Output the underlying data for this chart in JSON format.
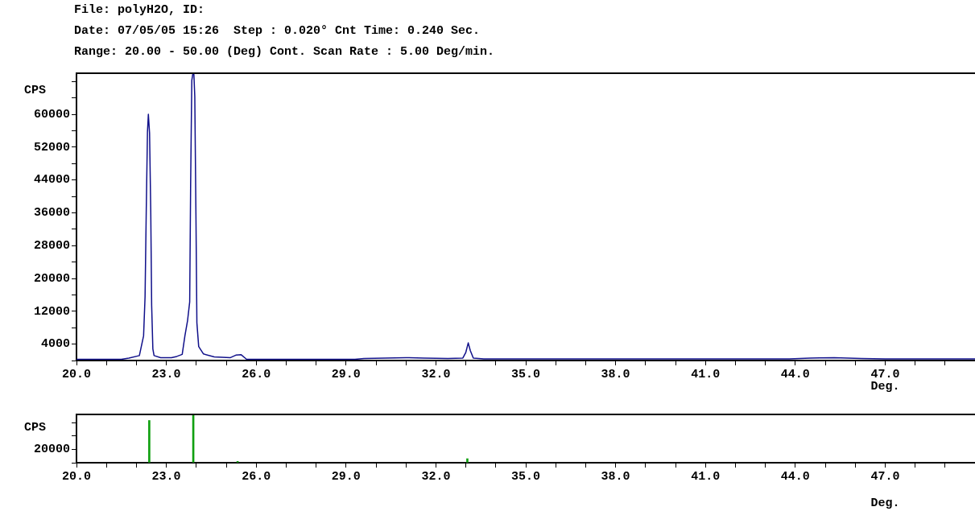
{
  "chart_data": [
    {
      "type": "line",
      "title": "File: polyH2O, ID:",
      "subtitle": "Date: 07/05/05 15:26  Step : 0.020° Cnt Time: 0.240 Sec.",
      "annotations": [
        "Range: 20.00 - 50.00 (Deg) Cont. Scan Rate : 5.00 Deg/min."
      ],
      "xlabel": "Deg.",
      "ylabel": "CPS",
      "marker": "none",
      "xlim": [
        20,
        50
      ],
      "ylim": [
        0,
        70000
      ],
      "xticks": [
        {
          "value": 20,
          "label": "20.0"
        },
        {
          "value": 21,
          "label": null
        },
        {
          "value": 22,
          "label": null
        },
        {
          "value": 23,
          "label": "23.0"
        },
        {
          "value": 24,
          "label": null
        },
        {
          "value": 25,
          "label": null
        },
        {
          "value": 26,
          "label": "26.0"
        },
        {
          "value": 27,
          "label": null
        },
        {
          "value": 28,
          "label": null
        },
        {
          "value": 29,
          "label": "29.0"
        },
        {
          "value": 30,
          "label": null
        },
        {
          "value": 31,
          "label": null
        },
        {
          "value": 32,
          "label": "32.0"
        },
        {
          "value": 33,
          "label": null
        },
        {
          "value": 34,
          "label": null
        },
        {
          "value": 35,
          "label": "35.0"
        },
        {
          "value": 36,
          "label": null
        },
        {
          "value": 37,
          "label": null
        },
        {
          "value": 38,
          "label": "38.0"
        },
        {
          "value": 39,
          "label": null
        },
        {
          "value": 40,
          "label": null
        },
        {
          "value": 41,
          "label": "41.0"
        },
        {
          "value": 42,
          "label": null
        },
        {
          "value": 43,
          "label": null
        },
        {
          "value": 44,
          "label": "44.0"
        },
        {
          "value": 45,
          "label": null
        },
        {
          "value": 46,
          "label": null
        },
        {
          "value": 47,
          "label": "47.0"
        },
        {
          "value": 48,
          "label": null
        },
        {
          "value": 49,
          "label": null
        }
      ],
      "yticks": [
        {
          "value": 0,
          "label": null
        },
        4000,
        {
          "value": 8000,
          "label": null
        },
        12000,
        {
          "value": 16000,
          "label": null
        },
        20000,
        {
          "value": 24000,
          "label": null
        },
        28000,
        {
          "value": 32000,
          "label": null
        },
        36000,
        {
          "value": 40000,
          "label": null
        },
        44000,
        {
          "value": 48000,
          "label": null
        },
        52000,
        {
          "value": 56000,
          "label": null
        },
        60000,
        {
          "value": 64000,
          "label": null
        },
        {
          "value": 68000,
          "label": null
        }
      ],
      "series": [
        {
          "color": "#10108a",
          "x": [
            20.0,
            21.5,
            21.75,
            22.1,
            22.24,
            22.29,
            22.33,
            22.37,
            22.4,
            22.44,
            22.48,
            22.51,
            22.55,
            22.59,
            22.81,
            23.17,
            23.35,
            23.53,
            23.62,
            23.71,
            23.78,
            23.81,
            23.85,
            23.88,
            23.92,
            23.95,
            23.99,
            24.02,
            24.08,
            24.24,
            24.6,
            25.14,
            25.32,
            25.5,
            25.68,
            27.0,
            29.3,
            29.6,
            30.3,
            31.0,
            31.6,
            32.4,
            32.9,
            33.0,
            33.08,
            33.15,
            33.25,
            33.6,
            36.0,
            40.0,
            43.8,
            44.5,
            45.3,
            46.2,
            47.0,
            50.0
          ],
          "values": [
            300,
            300,
            600,
            1200,
            6000,
            15600,
            36800,
            55700,
            60000,
            55400,
            36200,
            13400,
            2800,
            1200,
            700,
            700,
            1000,
            1500,
            6000,
            9800,
            14300,
            41900,
            68200,
            69700,
            69700,
            64300,
            34200,
            9200,
            3400,
            1600,
            900,
            700,
            1300,
            1400,
            300,
            300,
            300,
            500,
            600,
            700,
            600,
            500,
            600,
            2000,
            4300,
            2400,
            600,
            400,
            400,
            400,
            400,
            600,
            700,
            500,
            400,
            400
          ]
        }
      ]
    },
    {
      "type": "bar",
      "xlabel": "Deg.",
      "ylabel": "CPS",
      "xlim": [
        20,
        50
      ],
      "ylim": [
        0,
        72000
      ],
      "xticks": [
        {
          "value": 20,
          "label": "20.0"
        },
        {
          "value": 21,
          "label": null
        },
        {
          "value": 22,
          "label": null
        },
        {
          "value": 23,
          "label": "23.0"
        },
        {
          "value": 24,
          "label": null
        },
        {
          "value": 25,
          "label": null
        },
        {
          "value": 26,
          "label": "26.0"
        },
        {
          "value": 27,
          "label": null
        },
        {
          "value": 28,
          "label": null
        },
        {
          "value": 29,
          "label": "29.0"
        },
        {
          "value": 30,
          "label": null
        },
        {
          "value": 31,
          "label": null
        },
        {
          "value": 32,
          "label": "32.0"
        },
        {
          "value": 33,
          "label": null
        },
        {
          "value": 34,
          "label": null
        },
        {
          "value": 35,
          "label": "35.0"
        },
        {
          "value": 36,
          "label": null
        },
        {
          "value": 37,
          "label": null
        },
        {
          "value": 38,
          "label": "38.0"
        },
        {
          "value": 39,
          "label": null
        },
        {
          "value": 40,
          "label": null
        },
        {
          "value": 41,
          "label": "41.0"
        },
        {
          "value": 42,
          "label": null
        },
        {
          "value": 43,
          "label": null
        },
        {
          "value": 44,
          "label": "44.0"
        },
        {
          "value": 45,
          "label": null
        },
        {
          "value": 46,
          "label": null
        },
        {
          "value": 47,
          "label": "47.0"
        },
        {
          "value": 48,
          "label": null
        },
        {
          "value": 49,
          "label": null
        }
      ],
      "yticks": [
        {
          "value": 0,
          "label": null
        },
        20000,
        {
          "value": 40000,
          "label": null
        },
        {
          "value": 60000,
          "label": null
        }
      ],
      "x": [
        22.43,
        23.9,
        25.38,
        33.05
      ],
      "values": [
        63000,
        72000,
        2000,
        6000
      ],
      "color": "#10a010"
    }
  ]
}
